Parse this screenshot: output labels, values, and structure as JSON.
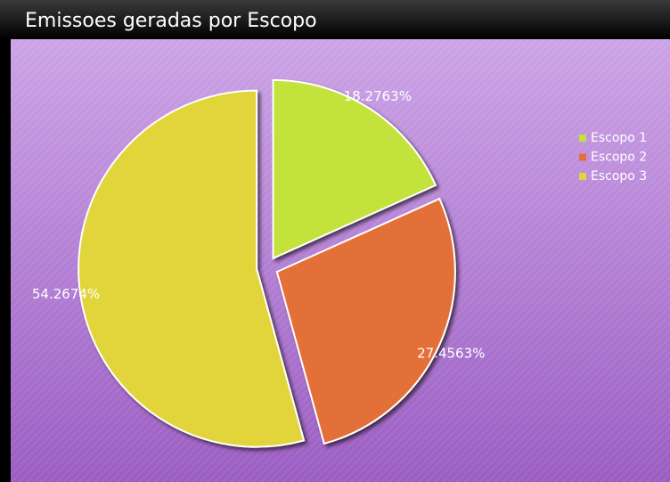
{
  "chart_data": {
    "type": "pie",
    "title": "Emissoes geradas por Escopo",
    "categories": [
      "Escopo 1",
      "Escopo 2",
      "Escopo 3"
    ],
    "values": [
      18.2763,
      27.4563,
      54.2674
    ],
    "value_labels": [
      "18.2763%",
      "27.4563%",
      "54.2674%"
    ],
    "colors": [
      "#c3e23a",
      "#e36f39",
      "#e2d43a"
    ],
    "legend": "right"
  }
}
